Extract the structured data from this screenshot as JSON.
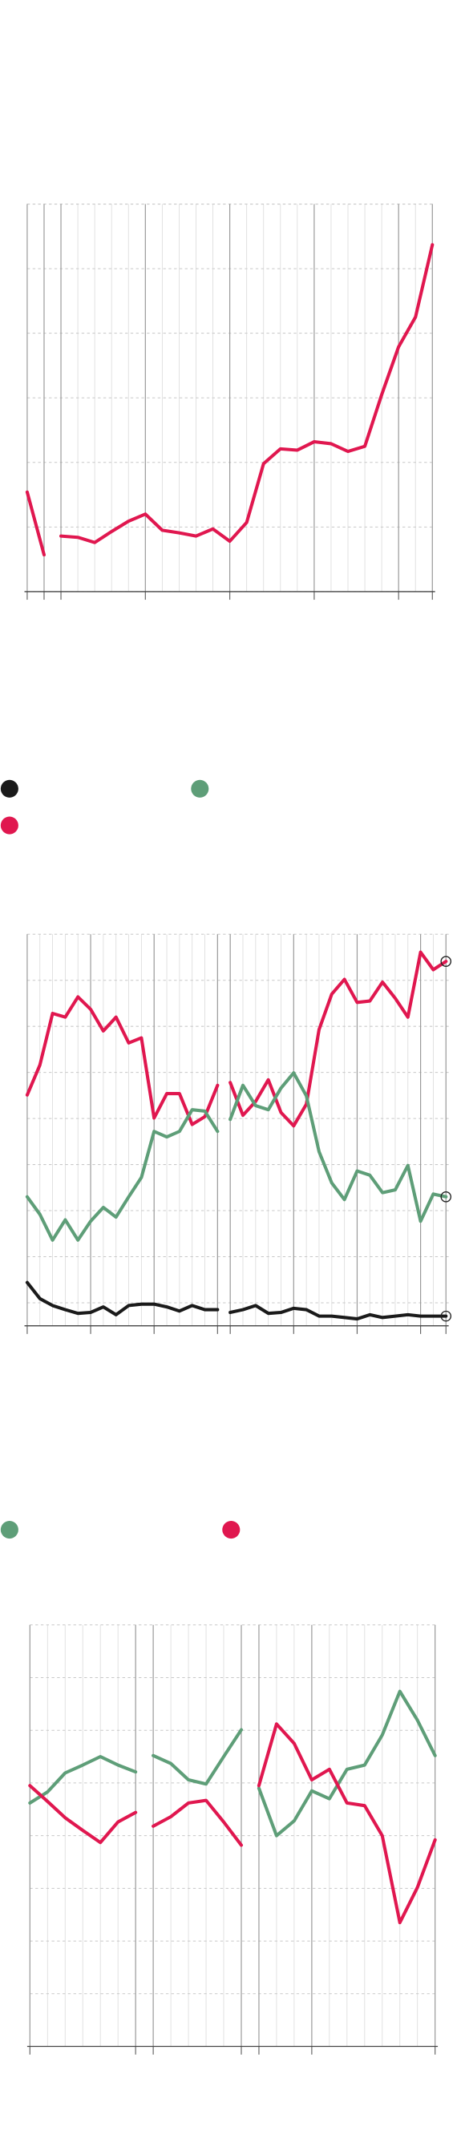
{
  "chart_data": [
    {
      "type": "line",
      "x": [
        0,
        1,
        1.5,
        2,
        3,
        4,
        5,
        6,
        7,
        8,
        9,
        10,
        11,
        12,
        13,
        14,
        15,
        16,
        17,
        18,
        19,
        20,
        21,
        22,
        23,
        24
      ],
      "series": [
        {
          "color": "#e0174f",
          "values": [
            1.54,
            0.57,
            null,
            0.86,
            0.84,
            0.76,
            0.93,
            1.09,
            1.2,
            0.95,
            0.91,
            0.86,
            0.97,
            0.78,
            1.07,
            1.98,
            2.21,
            2.19,
            2.32,
            2.29,
            2.17,
            2.25,
            3.05,
            3.79,
            4.25,
            5.37
          ]
        }
      ],
      "xlim": [
        0,
        24
      ],
      "xticks": [
        0,
        1,
        2,
        7,
        12,
        17,
        22,
        24
      ],
      "ylim": [
        0,
        6
      ],
      "yticks": [
        0,
        1,
        2,
        3,
        4,
        5,
        6
      ],
      "grid": true
    },
    {
      "type": "line",
      "x": [
        0,
        1,
        2,
        3,
        4,
        5,
        6,
        7,
        8,
        9,
        10,
        11,
        12,
        13,
        14,
        15,
        15.5,
        16,
        17,
        18,
        19,
        20,
        21,
        22,
        23,
        24,
        25,
        26,
        27,
        28,
        29,
        30,
        31,
        32,
        33
      ],
      "series": [
        {
          "color": "#e0174f",
          "values": [
            50.1,
            56.6,
            67.8,
            67.0,
            71.4,
            68.7,
            64.0,
            67.0,
            61.4,
            62.5,
            45.1,
            50.4,
            50.4,
            43.7,
            45.4,
            52.2,
            null,
            52.8,
            45.7,
            48.7,
            53.4,
            46.3,
            43.4,
            48.1,
            64.3,
            72.0,
            75.2,
            70.2,
            70.5,
            74.6,
            71.1,
            67.0,
            81.1,
            77.3,
            79.1
          ]
        },
        {
          "color": "#5e9e78",
          "values": [
            28.0,
            24.2,
            18.6,
            23.0,
            18.6,
            22.7,
            25.7,
            23.6,
            28.0,
            32.2,
            42.2,
            41.0,
            42.2,
            46.9,
            46.6,
            42.2,
            null,
            44.8,
            52.2,
            47.8,
            46.9,
            51.6,
            54.9,
            49.9,
            37.8,
            31.0,
            27.4,
            33.6,
            32.7,
            28.9,
            29.5,
            34.8,
            22.7,
            28.6,
            28.0
          ]
        },
        {
          "color": "#1a1a1a",
          "values": [
            9.4,
            5.9,
            4.4,
            3.5,
            2.7,
            2.9,
            4.1,
            2.4,
            4.4,
            4.7,
            4.7,
            4.1,
            3.2,
            4.4,
            3.5,
            3.5,
            null,
            2.9,
            3.5,
            4.4,
            2.7,
            2.9,
            3.8,
            3.5,
            2.1,
            2.1,
            1.8,
            1.5,
            2.4,
            1.8,
            2.1,
            2.4,
            2.1,
            2.1,
            2.1
          ]
        }
      ],
      "legend": true,
      "end_markers": true,
      "xlim": [
        0,
        33
      ],
      "xticks": [
        0,
        5,
        10,
        15,
        16,
        21,
        26,
        31,
        33
      ],
      "ylim": [
        0,
        85
      ],
      "yticks": [
        5,
        15,
        25,
        35,
        45,
        55,
        65,
        75,
        85
      ],
      "grid": true
    },
    {
      "type": "line",
      "x": [
        0,
        1,
        2,
        3,
        4,
        5,
        6,
        6.5,
        7,
        8,
        9,
        10,
        11,
        12,
        12.5,
        13,
        14,
        15,
        16,
        17,
        18,
        19,
        20,
        21,
        22,
        23
      ],
      "series": [
        {
          "color": "#5e9e78",
          "values": [
            4.62,
            4.83,
            5.19,
            5.34,
            5.5,
            5.34,
            5.21,
            null,
            5.52,
            5.37,
            5.06,
            4.98,
            5.5,
            6.01,
            null,
            4.9,
            4.0,
            4.28,
            4.85,
            4.7,
            5.26,
            5.34,
            5.91,
            6.74,
            6.19,
            5.52
          ]
        },
        {
          "color": "#e0174f",
          "values": [
            4.95,
            4.65,
            4.34,
            4.1,
            3.87,
            4.26,
            4.44,
            null,
            4.18,
            4.36,
            4.62,
            4.67,
            4.26,
            3.82,
            null,
            4.95,
            6.12,
            5.75,
            5.06,
            5.26,
            4.62,
            4.57,
            4.0,
            2.35,
            3.02,
            3.92
          ]
        }
      ],
      "legend": true,
      "xlim": [
        0,
        23
      ],
      "xticks": [
        0,
        6,
        7,
        12,
        13,
        16,
        23
      ],
      "ylim": [
        0,
        8
      ],
      "yticks": [
        0,
        1,
        2,
        3,
        4,
        5,
        6,
        7,
        8
      ],
      "grid": true
    }
  ]
}
